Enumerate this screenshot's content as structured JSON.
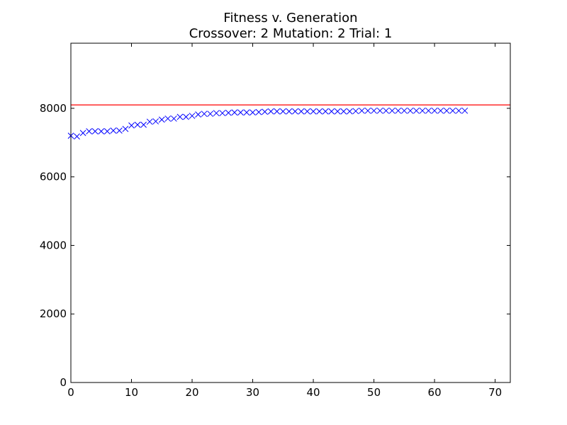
{
  "chart_data": {
    "type": "scatter",
    "title": "Fitness v. Generation",
    "subtitle": "Crossover: 2 Mutation: 2 Trial: 1",
    "xlabel": "",
    "ylabel": "",
    "xlim": [
      0,
      72.5
    ],
    "ylim": [
      0,
      9900
    ],
    "xticks": [
      0,
      10,
      20,
      30,
      40,
      50,
      60,
      70
    ],
    "yticks": [
      0,
      2000,
      4000,
      6000,
      8000
    ],
    "grid": false,
    "legend": "none",
    "reference_line": {
      "y": 8100,
      "color": "#ff0000"
    },
    "series": [
      {
        "marker": "x",
        "color": "#0000ff",
        "x": [
          0,
          1,
          2,
          3,
          4,
          5,
          6,
          7,
          8,
          9,
          10,
          11,
          12,
          13,
          14,
          15,
          16,
          17,
          18,
          19,
          20,
          21,
          22,
          23,
          24,
          25,
          26,
          27,
          28,
          29,
          30,
          31,
          32,
          33,
          34,
          35,
          36,
          37,
          38,
          39,
          40,
          41,
          42,
          43,
          44,
          45,
          46,
          47,
          48,
          49,
          50,
          51,
          52,
          53,
          54,
          55,
          56,
          57,
          58,
          59,
          60,
          61,
          62,
          63,
          64,
          65
        ],
        "values": [
          7200,
          7180,
          7280,
          7330,
          7330,
          7330,
          7330,
          7350,
          7350,
          7400,
          7500,
          7520,
          7520,
          7610,
          7620,
          7670,
          7700,
          7700,
          7750,
          7750,
          7780,
          7820,
          7840,
          7840,
          7860,
          7860,
          7870,
          7880,
          7880,
          7880,
          7880,
          7890,
          7900,
          7910,
          7910,
          7910,
          7910,
          7910,
          7910,
          7910,
          7910,
          7910,
          7910,
          7910,
          7910,
          7910,
          7910,
          7920,
          7930,
          7930,
          7930,
          7930,
          7930,
          7930,
          7930,
          7930,
          7930,
          7930,
          7930,
          7930,
          7930,
          7930,
          7930,
          7930,
          7930,
          7930
        ]
      }
    ]
  }
}
